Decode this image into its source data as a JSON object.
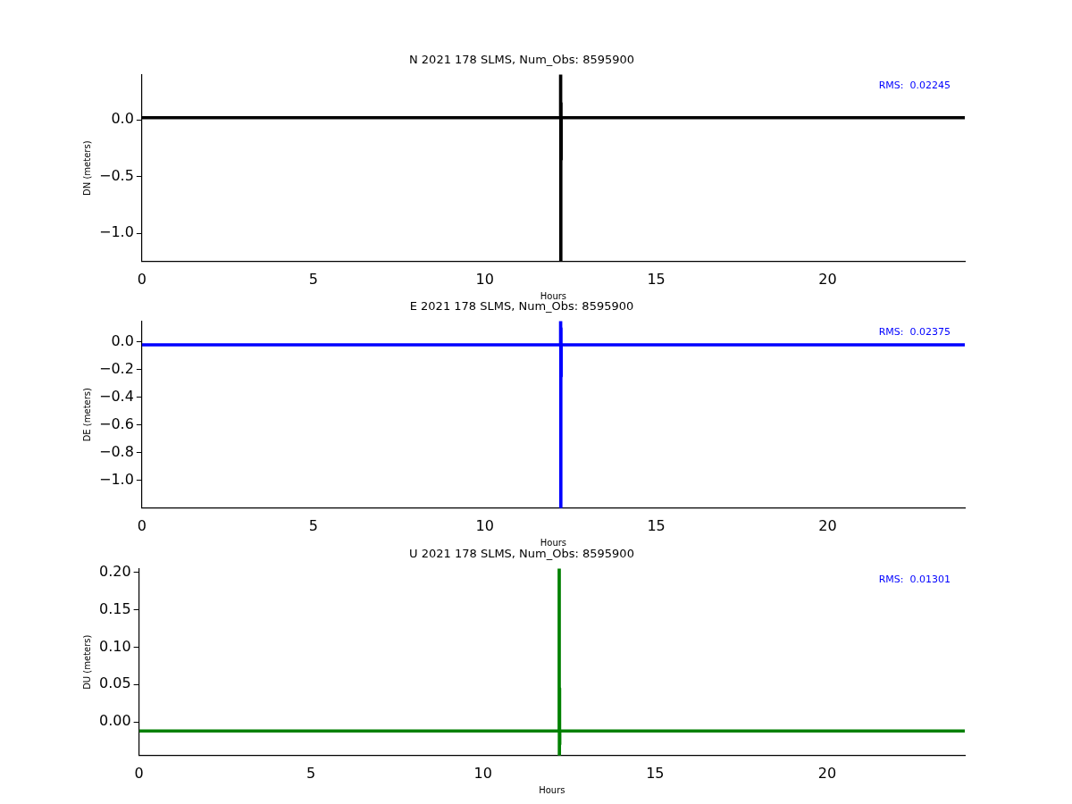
{
  "chart_data": [
    {
      "type": "line",
      "title": "N 2021 178 SLMS, Num_Obs: 8595900",
      "xlabel": "Hours",
      "ylabel": "DN (meters)",
      "annotations": [
        "RMS:  0.02245"
      ],
      "x": [
        0,
        12.2,
        12.21,
        12.215,
        12.22,
        12.225,
        12.23,
        24
      ],
      "xlim": [
        0,
        24
      ],
      "xticks": [
        0,
        5,
        10,
        15,
        20
      ],
      "ylim": [
        -1.25,
        0.4
      ],
      "yticks": [
        {
          "value": 0,
          "label": "0.0"
        },
        -0.5,
        {
          "value": -1,
          "label": "−1.0"
        }
      ],
      "grid": false,
      "legend": false,
      "marker": "none",
      "line_style": "solid",
      "series": [
        {
          "color": "#000000",
          "values": [
            0.02,
            0.02,
            0.4,
            -1.25,
            0.15,
            -0.35,
            0.02,
            0.02
          ]
        }
      ]
    },
    {
      "type": "line",
      "title": "E 2021 178 SLMS, Num_Obs: 8595900",
      "xlabel": "Hours",
      "ylabel": "DE (meters)",
      "annotations": [
        "RMS:  0.02375"
      ],
      "x": [
        0,
        12.2,
        12.21,
        12.215,
        12.22,
        12.225,
        12.23,
        24
      ],
      "xlim": [
        0,
        24
      ],
      "xticks": [
        0,
        5,
        10,
        15,
        20
      ],
      "ylim": [
        -1.2,
        0.15
      ],
      "yticks": [
        {
          "value": 0,
          "label": "0.0"
        },
        -0.2,
        -0.4,
        -0.6,
        -0.8,
        {
          "value": -1,
          "label": "−1.0"
        }
      ],
      "grid": false,
      "legend": false,
      "marker": "none",
      "line_style": "solid",
      "series": [
        {
          "color": "#0000ff",
          "values": [
            -0.02,
            -0.02,
            0.15,
            -1.2,
            0.1,
            -0.25,
            -0.02,
            -0.02
          ]
        }
      ]
    },
    {
      "type": "line",
      "title": "U 2021 178 SLMS, Num_Obs: 8595900",
      "xlabel": "Hours",
      "ylabel": "DU (meters)",
      "annotations": [
        "RMS:  0.01301"
      ],
      "x": [
        0,
        12.2,
        12.21,
        12.215,
        12.22,
        12.225,
        12.23,
        24
      ],
      "xlim": [
        0,
        24
      ],
      "xticks": [
        0,
        5,
        10,
        15,
        20
      ],
      "ylim": [
        -0.045,
        0.205
      ],
      "yticks": [
        {
          "value": 0,
          "label": "0.00"
        },
        0.05,
        {
          "value": 0.1,
          "label": "0.10"
        },
        0.15,
        {
          "value": 0.2,
          "label": "0.20"
        }
      ],
      "grid": false,
      "legend": false,
      "marker": "none",
      "line_style": "solid",
      "series": [
        {
          "color": "#008000",
          "values": [
            -0.012,
            -0.012,
            0.205,
            -0.045,
            0.045,
            -0.03,
            -0.012,
            -0.012
          ]
        }
      ]
    }
  ]
}
